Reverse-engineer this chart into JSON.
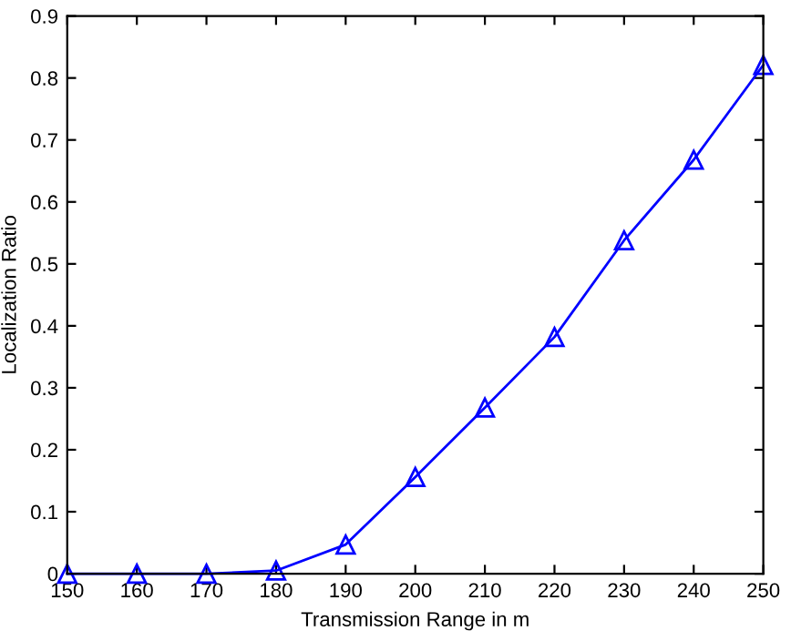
{
  "chart_data": {
    "type": "line",
    "xlabel": "Transmission Range in m",
    "ylabel": "Localization Ratio",
    "x": [
      150,
      160,
      170,
      180,
      190,
      200,
      210,
      220,
      230,
      240,
      250
    ],
    "series": [
      {
        "color": "#0000ff",
        "values": [
          0,
          0,
          0,
          0.005,
          0.047,
          0.156,
          0.268,
          0.382,
          0.538,
          0.668,
          0.821
        ]
      }
    ],
    "xlim": [
      150,
      250
    ],
    "ylim": [
      0,
      0.9
    ],
    "xticks": [
      150,
      160,
      170,
      180,
      190,
      200,
      210,
      220,
      230,
      240,
      250
    ],
    "yticks": [
      0,
      0.1,
      0.2,
      0.3,
      0.4,
      0.5,
      0.6,
      0.7,
      0.8,
      0.9
    ],
    "marker": "triangle",
    "line_style": "solid",
    "grid": false
  }
}
